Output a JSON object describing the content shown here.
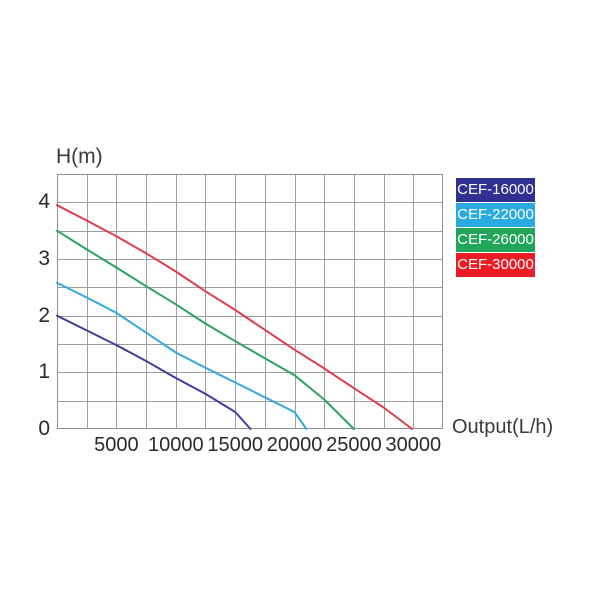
{
  "page": {
    "background": "#ffffff"
  },
  "colors": {
    "grid": "#9e9e9e",
    "plot_border": "#8f8f8f",
    "tick_text": "#2a2a2a",
    "axis_label_text": "#3a3a3a",
    "legend_text": "#ffffff"
  },
  "chart_data": {
    "type": "line",
    "title": "",
    "xlabel": "Output(L/h)",
    "ylabel": "H(m)",
    "xlim": [
      0,
      32500
    ],
    "ylim": [
      0,
      4.5
    ],
    "grid": true,
    "x_grid_step": 2500,
    "y_grid_step": 0.5,
    "x_tick_values": [
      5000,
      10000,
      15000,
      20000,
      25000,
      30000
    ],
    "x_tick_labels": [
      "5000",
      "10000",
      "15000",
      "20000",
      "25000",
      "30000"
    ],
    "y_tick_values": [
      0,
      1,
      2,
      3,
      4
    ],
    "y_tick_labels": [
      "0",
      "1",
      "2",
      "3",
      "4"
    ],
    "legend_position": "top-right-outside",
    "series": [
      {
        "name": "CEF-16000",
        "legend_color": "#2e3192",
        "line_color": "#403e99",
        "points": [
          [
            0,
            2.0
          ],
          [
            2500,
            1.74
          ],
          [
            5000,
            1.48
          ],
          [
            7500,
            1.2
          ],
          [
            10000,
            0.9
          ],
          [
            12500,
            0.62
          ],
          [
            15000,
            0.3
          ],
          [
            16300,
            0
          ]
        ]
      },
      {
        "name": "CEF-22000",
        "legend_color": "#29abe2",
        "line_color": "#35a9df",
        "points": [
          [
            0,
            2.58
          ],
          [
            2500,
            2.32
          ],
          [
            5000,
            2.05
          ],
          [
            7500,
            1.7
          ],
          [
            10000,
            1.35
          ],
          [
            12500,
            1.08
          ],
          [
            15000,
            0.82
          ],
          [
            17500,
            0.56
          ],
          [
            20000,
            0.3
          ],
          [
            21000,
            0
          ]
        ]
      },
      {
        "name": "CEF-26000",
        "legend_color": "#21a559",
        "line_color": "#2ca25f",
        "points": [
          [
            0,
            3.5
          ],
          [
            2500,
            3.17
          ],
          [
            5000,
            2.85
          ],
          [
            7500,
            2.52
          ],
          [
            10000,
            2.2
          ],
          [
            12500,
            1.86
          ],
          [
            15000,
            1.55
          ],
          [
            17500,
            1.25
          ],
          [
            20000,
            0.95
          ],
          [
            22500,
            0.52
          ],
          [
            25000,
            0
          ]
        ]
      },
      {
        "name": "CEF-30000",
        "legend_color": "#ed1c24",
        "line_color": "#dc3e4d",
        "points": [
          [
            0,
            3.95
          ],
          [
            2500,
            3.68
          ],
          [
            5000,
            3.4
          ],
          [
            7500,
            3.1
          ],
          [
            10000,
            2.78
          ],
          [
            12500,
            2.43
          ],
          [
            15000,
            2.1
          ],
          [
            17500,
            1.75
          ],
          [
            20000,
            1.4
          ],
          [
            22500,
            1.07
          ],
          [
            25000,
            0.72
          ],
          [
            27500,
            0.38
          ],
          [
            29900,
            0
          ]
        ]
      }
    ]
  }
}
